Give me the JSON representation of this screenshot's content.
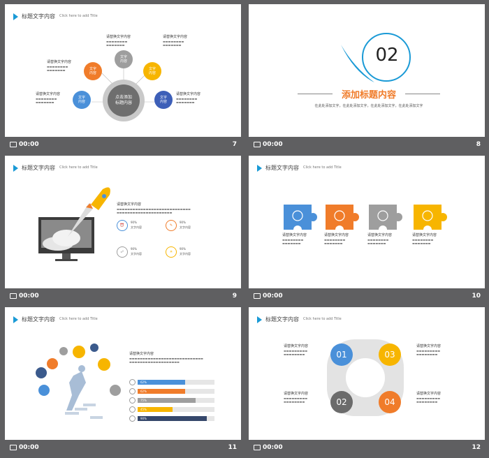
{
  "header": {
    "title": "标题文字内容",
    "subtitle": "Click here to add Title"
  },
  "footer": {
    "time": "00:00"
  },
  "slides": {
    "s7": {
      "num": "7",
      "center": "点击添加\n标题内容",
      "items": [
        {
          "label": "文字\n内容",
          "color": "#f07c2a"
        },
        {
          "label": "文字\n内容",
          "color": "#9e9e9e"
        },
        {
          "label": "文字\n内容",
          "color": "#f7b500"
        },
        {
          "label": "文字\n内容",
          "color": "#4a90d9"
        },
        {
          "label": "文字\n内容",
          "color": "#3d5fb8"
        }
      ],
      "text_title": "请替换文字内容"
    },
    "s8": {
      "num": "8",
      "big": "02",
      "title": "添加标题内容",
      "sub": "在此处添加文字，在此处添加文字，在此处添加文字，在此处添加文字"
    },
    "s9": {
      "num": "9",
      "text_title": "请替换文字内容",
      "stats": [
        {
          "pct": "90%",
          "label": "文字内容"
        },
        {
          "pct": "90%",
          "label": "文字内容"
        },
        {
          "pct": "90%",
          "label": "文字内容"
        },
        {
          "pct": "90%",
          "label": "文字内容"
        }
      ]
    },
    "s10": {
      "num": "10",
      "puzzle_label": "请替换文字内容",
      "colors": [
        "#4a90d9",
        "#f07c2a",
        "#9e9e9e",
        "#f7b500"
      ]
    },
    "s11": {
      "num": "11",
      "text_title": "请替换文字内容",
      "bars": [
        {
          "label": "62%",
          "value": 62,
          "color": "#4a90d9"
        },
        {
          "label": "62%",
          "value": 62,
          "color": "#f07c2a"
        },
        {
          "label": "75%",
          "value": 75,
          "color": "#9e9e9e"
        },
        {
          "label": "45%",
          "value": 45,
          "color": "#f7b500"
        },
        {
          "label": "90%",
          "value": 90,
          "color": "#35476b"
        }
      ]
    },
    "s12": {
      "num": "12",
      "label": "请替换文字内容",
      "petals": [
        {
          "n": "01",
          "color": "#4a90d9"
        },
        {
          "n": "03",
          "color": "#f7b500"
        },
        {
          "n": "02",
          "color": "#6b6b6b"
        },
        {
          "n": "04",
          "color": "#f07c2a"
        }
      ]
    }
  }
}
